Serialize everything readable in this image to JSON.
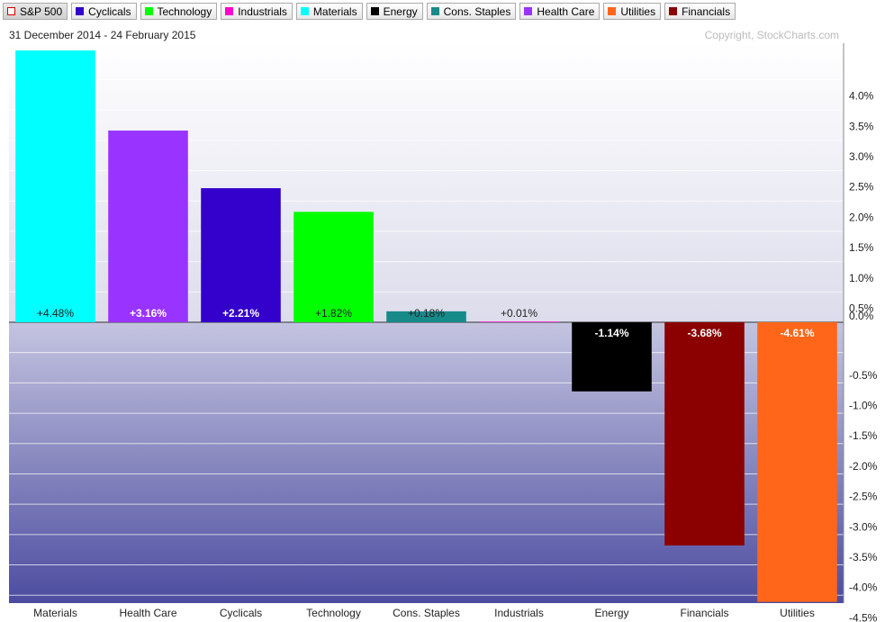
{
  "toolbar": [
    {
      "label": "S&P 500",
      "color": "#cc0000",
      "active": true
    },
    {
      "label": "Cyclicals",
      "color": "#3300cc"
    },
    {
      "label": "Technology",
      "color": "#00ff00"
    },
    {
      "label": "Industrials",
      "color": "#ff00cc"
    },
    {
      "label": "Materials",
      "color": "#00ffff"
    },
    {
      "label": "Energy",
      "color": "#000000"
    },
    {
      "label": "Cons. Staples",
      "color": "#178a8a"
    },
    {
      "label": "Health Care",
      "color": "#9933ff"
    },
    {
      "label": "Utilities",
      "color": "#ff6619"
    },
    {
      "label": "Financials",
      "color": "#8b0000"
    }
  ],
  "chart_data": {
    "type": "bar",
    "subtitle": "31 December 2014 - 24 February 2015",
    "copyright": "Copyright, StockCharts.com",
    "categories": [
      "Materials",
      "Health Care",
      "Cyclicals",
      "Technology",
      "Cons. Staples",
      "Industrials",
      "Energy",
      "Financials",
      "Utilities"
    ],
    "values": [
      4.48,
      3.16,
      2.21,
      1.82,
      0.18,
      0.01,
      -1.14,
      -3.68,
      -4.61
    ],
    "value_labels": [
      "+4.48%",
      "+3.16%",
      "+2.21%",
      "+1.82%",
      "+0.18%",
      "+0.01%",
      "-1.14%",
      "-3.68%",
      "-4.61%"
    ],
    "colors": [
      "#00ffff",
      "#9933ff",
      "#3300cc",
      "#00ff00",
      "#178a8a",
      "#ff00cc",
      "#000000",
      "#8b0000",
      "#ff6619"
    ],
    "ylim": [
      -4.63,
      4.6
    ],
    "yticks": [
      {
        "value": 4.0,
        "label": "4.0%"
      },
      {
        "value": 3.5,
        "label": "3.5%"
      },
      {
        "value": 3.0,
        "label": "3.0%"
      },
      {
        "value": 2.5,
        "label": "2.5%"
      },
      {
        "value": 2.0,
        "label": "2.0%"
      },
      {
        "value": 1.5,
        "label": "1.5%"
      },
      {
        "value": 1.0,
        "label": "1.0%"
      },
      {
        "value": 0.5,
        "label": "0.5%"
      },
      {
        "value": 0.0,
        "label": "0.0%"
      },
      {
        "value": -0.5,
        "label": "-0.5%"
      },
      {
        "value": -1.0,
        "label": "-1.0%"
      },
      {
        "value": -1.5,
        "label": "-1.5%"
      },
      {
        "value": -2.0,
        "label": "-2.0%"
      },
      {
        "value": -2.5,
        "label": "-2.5%"
      },
      {
        "value": -3.0,
        "label": "-3.0%"
      },
      {
        "value": -3.5,
        "label": "-3.5%"
      },
      {
        "value": -4.0,
        "label": "-4.0%"
      },
      {
        "value": -4.5,
        "label": "-4.5%"
      }
    ],
    "grid": true
  }
}
